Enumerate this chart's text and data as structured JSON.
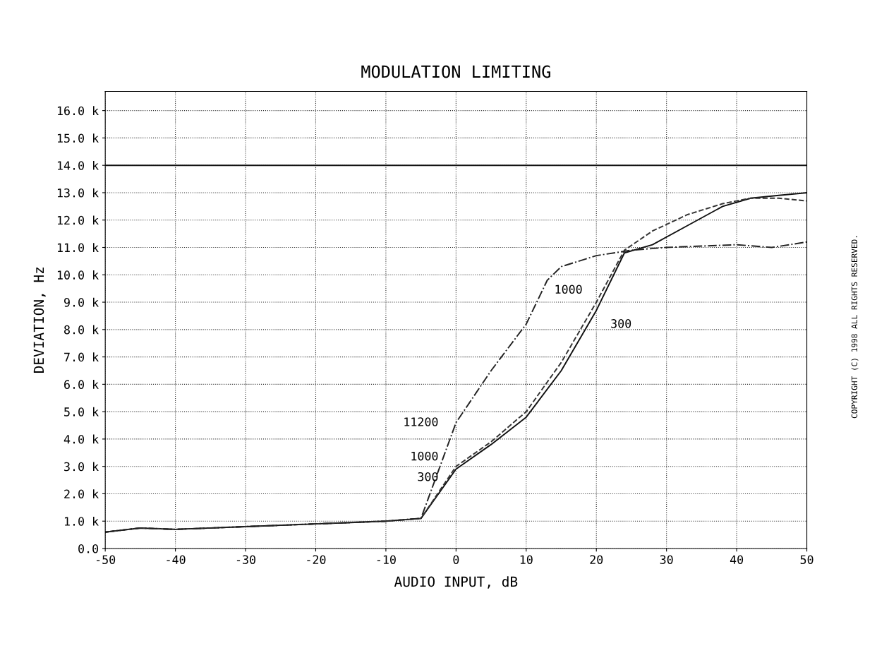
{
  "chart_data": {
    "type": "line",
    "title": "MODULATION LIMITING",
    "xlabel": "AUDIO INPUT, dB",
    "ylabel": "DEVIATION, Hz",
    "x": [
      -50,
      -45,
      -40,
      -30,
      -20,
      -10,
      -5,
      0,
      5,
      10,
      15,
      20,
      24,
      28,
      33,
      38,
      42,
      46,
      50
    ],
    "series": [
      {
        "color": "#111111",
        "line_style": "solid",
        "values": [
          600,
          750,
          700,
          800,
          900,
          1000,
          1100,
          2900,
          3800,
          4800,
          6500,
          8700,
          10800,
          11100,
          11800,
          12500,
          12800,
          12900,
          13000
        ]
      },
      {
        "color": "#333333",
        "line_style": "dashed",
        "values": [
          600,
          750,
          700,
          800,
          900,
          1000,
          1100,
          3000,
          3900,
          5000,
          6800,
          9000,
          10900,
          11600,
          12200,
          12600,
          12800,
          12800,
          12700
        ]
      },
      {
        "color": "#222222",
        "line_style": "dashdot",
        "x": [
          -50,
          -45,
          -40,
          -30,
          -20,
          -10,
          -5,
          0,
          5,
          10,
          13,
          15,
          20,
          25,
          30,
          40,
          45,
          50
        ],
        "values": [
          600,
          750,
          700,
          800,
          900,
          1000,
          1100,
          4600,
          6500,
          8200,
          9800,
          10300,
          10700,
          10900,
          11000,
          11100,
          11000,
          11200
        ]
      }
    ],
    "xlim": [
      -50,
      50
    ],
    "xticks": [
      -50,
      -40,
      -30,
      -20,
      -10,
      0,
      10,
      20,
      30,
      40,
      50
    ],
    "ylim": [
      0,
      16700
    ],
    "yticks": [
      {
        "value": 0,
        "label": "0.0"
      },
      {
        "value": 1000,
        "label": "1.0 k"
      },
      {
        "value": 2000,
        "label": "2.0 k"
      },
      {
        "value": 3000,
        "label": "3.0 k"
      },
      {
        "value": 4000,
        "label": "4.0 k"
      },
      {
        "value": 5000,
        "label": "5.0 k"
      },
      {
        "value": 6000,
        "label": "6.0 k"
      },
      {
        "value": 7000,
        "label": "7.0 k"
      },
      {
        "value": 8000,
        "label": "8.0 k"
      },
      {
        "value": 9000,
        "label": "9.0 k"
      },
      {
        "value": 10000,
        "label": "10.0 k"
      },
      {
        "value": 11000,
        "label": "11.0 k"
      },
      {
        "value": 12000,
        "label": "12.0 k"
      },
      {
        "value": 13000,
        "label": "13.0 k"
      },
      {
        "value": 14000,
        "label": "14.0 k"
      },
      {
        "value": 15000,
        "label": "15.0 k"
      },
      {
        "value": 16000,
        "label": "16.0 k"
      }
    ],
    "ref_lines": [
      {
        "axis": "y",
        "value": 14000,
        "color": "#111111",
        "line_style": "solid"
      }
    ],
    "grid": true,
    "annotations": [
      "11200",
      "1000",
      "300",
      "1000",
      "300",
      "COPYRIGHT (C) 1998 ALL RIGHTS RESERVED."
    ]
  }
}
